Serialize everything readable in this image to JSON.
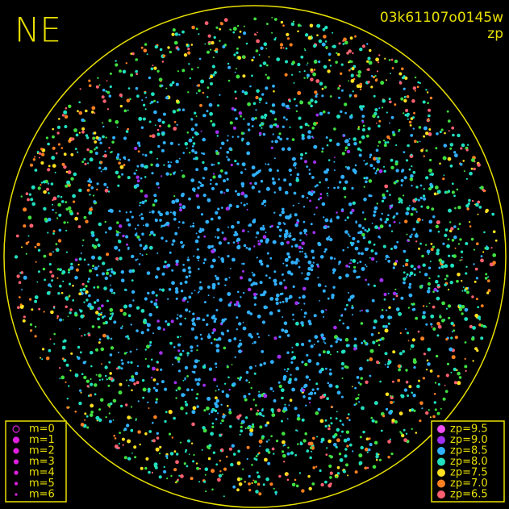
{
  "header": {
    "corner": "NE",
    "frame": "03k61107o0145w",
    "mode": "zp"
  },
  "magnitude_legend": {
    "color": "#e020e0",
    "items": [
      "m=0",
      "m=1",
      "m=2",
      "m=3",
      "m=4",
      "m=5",
      "m=6"
    ]
  },
  "zp_legend": [
    {
      "label": "zp=9.5",
      "color": "#f050f0"
    },
    {
      "label": "zp=9.0",
      "color": "#a030f0"
    },
    {
      "label": "zp=8.5",
      "color": "#30b0ff"
    },
    {
      "label": "zp=8.0",
      "color": "#20e0c0"
    },
    {
      "label": "zp=7.5",
      "color": "#ffe020"
    },
    {
      "label": "zp=7.0",
      "color": "#ff8020"
    },
    {
      "label": "zp=6.5",
      "color": "#ff6070"
    }
  ]
}
